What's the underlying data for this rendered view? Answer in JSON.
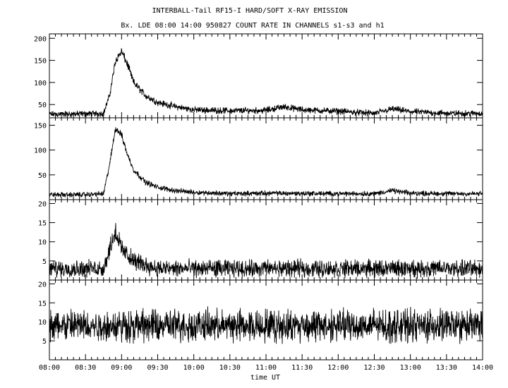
{
  "figure": {
    "title": "INTERBALL-Tail RF15-I HARD/SOFT X-RAY EMISSION",
    "subtitle": "Bx. LDE 08:00 14:00 950827  COUNT RATE IN CHANNELS s1-s3 and h1",
    "xlabel": "time UT"
  },
  "chart_data": [
    {
      "type": "line",
      "panel": 1,
      "ylim": [
        20,
        210
      ],
      "yticks": [
        50,
        100,
        150,
        200
      ],
      "xlim": [
        "08:00",
        "14:00"
      ],
      "x": [
        "08:00",
        "08:30",
        "08:45",
        "08:50",
        "08:55",
        "09:00",
        "09:05",
        "09:10",
        "09:20",
        "09:30",
        "09:45",
        "10:00",
        "10:30",
        "11:00",
        "11:15",
        "11:30",
        "12:00",
        "12:30",
        "12:45",
        "13:00",
        "13:30",
        "14:00"
      ],
      "values": [
        28,
        29,
        30,
        70,
        150,
        170,
        140,
        100,
        70,
        55,
        45,
        38,
        36,
        37,
        45,
        38,
        35,
        30,
        40,
        34,
        30,
        30
      ],
      "noise": 8
    },
    {
      "type": "line",
      "panel": 2,
      "ylim": [
        0,
        165
      ],
      "yticks": [
        50,
        100,
        150
      ],
      "xlim": [
        "08:00",
        "14:00"
      ],
      "x": [
        "08:00",
        "08:30",
        "08:45",
        "08:50",
        "08:55",
        "09:00",
        "09:05",
        "09:10",
        "09:20",
        "09:30",
        "09:45",
        "10:00",
        "10:30",
        "11:00",
        "12:00",
        "12:30",
        "12:45",
        "13:00",
        "13:30",
        "14:00"
      ],
      "values": [
        10,
        10,
        12,
        70,
        145,
        130,
        90,
        60,
        35,
        25,
        18,
        15,
        12,
        13,
        12,
        12,
        18,
        13,
        12,
        12
      ],
      "noise": 6
    },
    {
      "type": "line",
      "panel": 3,
      "ylim": [
        0,
        21
      ],
      "yticks": [
        5,
        10,
        15,
        20
      ],
      "xlim": [
        "08:00",
        "14:00"
      ],
      "x": [
        "08:00",
        "08:30",
        "08:45",
        "08:50",
        "08:55",
        "09:00",
        "09:10",
        "09:30",
        "10:00",
        "11:00",
        "12:00",
        "13:00",
        "14:00"
      ],
      "values": [
        3,
        3,
        3,
        8,
        13,
        8,
        5,
        3,
        3,
        3,
        3,
        3,
        3
      ],
      "noise": 2.5
    },
    {
      "type": "line",
      "panel": 4,
      "ylim": [
        0,
        21
      ],
      "yticks": [
        5,
        10,
        15,
        20
      ],
      "xlim": [
        "08:00",
        "14:00"
      ],
      "x": [
        "08:00",
        "14:00"
      ],
      "values": [
        9,
        9
      ],
      "noise": 4
    }
  ],
  "xticks": [
    "08:00",
    "08:30",
    "09:00",
    "09:30",
    "10:00",
    "10:30",
    "11:00",
    "11:30",
    "12:00",
    "12:30",
    "13:00",
    "13:30",
    "14:00"
  ]
}
